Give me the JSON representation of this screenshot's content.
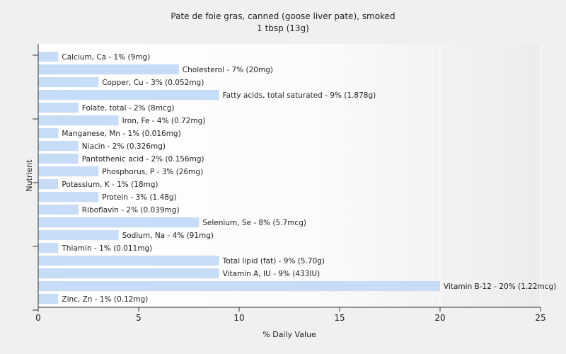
{
  "chart_data": {
    "type": "bar",
    "orientation": "horizontal",
    "title": "Pate de foie gras, canned (goose liver pate), smoked",
    "subtitle": "1 tbsp (13g)",
    "xlabel": "% Daily Value",
    "ylabel": "Nutrient",
    "xlim": [
      0,
      25
    ],
    "xticks": [
      0,
      5,
      10,
      15,
      20,
      25
    ],
    "grid": true,
    "bar_color": "#c6dcf7",
    "categories": [
      "Calcium, Ca",
      "Cholesterol",
      "Copper, Cu",
      "Fatty acids, total saturated",
      "Folate, total",
      "Iron, Fe",
      "Manganese, Mn",
      "Niacin",
      "Pantothenic acid",
      "Phosphorus, P",
      "Potassium, K",
      "Protein",
      "Riboflavin",
      "Selenium, Se",
      "Sodium, Na",
      "Thiamin",
      "Total lipid (fat)",
      "Vitamin A, IU",
      "Vitamin B-12",
      "Zinc, Zn"
    ],
    "values": [
      1,
      7,
      3,
      9,
      2,
      4,
      1,
      2,
      2,
      3,
      1,
      3,
      2,
      8,
      4,
      1,
      9,
      9,
      20,
      1
    ],
    "labels": [
      "Calcium, Ca - 1% (9mg)",
      "Cholesterol - 7% (20mg)",
      "Copper, Cu - 3% (0.052mg)",
      "Fatty acids, total saturated - 9% (1.878g)",
      "Folate, total - 2% (8mcg)",
      "Iron, Fe - 4% (0.72mg)",
      "Manganese, Mn - 1% (0.016mg)",
      "Niacin - 2% (0.326mg)",
      "Pantothenic acid - 2% (0.156mg)",
      "Phosphorus, P - 3% (26mg)",
      "Potassium, K - 1% (18mg)",
      "Protein - 3% (1.48g)",
      "Riboflavin - 2% (0.039mg)",
      "Selenium, Se - 8% (5.7mcg)",
      "Sodium, Na - 4% (91mg)",
      "Thiamin - 1% (0.011mg)",
      "Total lipid (fat) - 9% (5.70g)",
      "Vitamin A, IU - 9% (433IU)",
      "Vitamin B-12 - 20% (1.22mcg)",
      "Zinc, Zn - 1% (0.12mg)"
    ]
  }
}
